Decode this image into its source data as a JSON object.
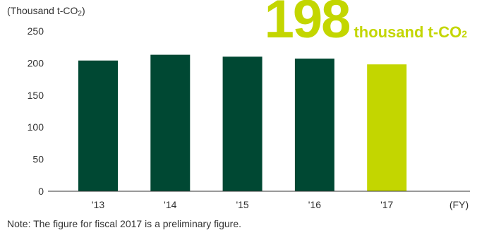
{
  "unit_label_main": "(Thousand t-CO",
  "unit_label_sub": "2",
  "unit_label_end": ")",
  "highlight": {
    "value": "198",
    "unit_main": "thousand t-CO",
    "unit_sub": "2",
    "color": "#c3d600"
  },
  "note": "Note: The figure for fiscal 2017 is a preliminary figure.",
  "colors": {
    "bar": "#004833",
    "bar_highlight": "#c3d600",
    "axis": "#333333"
  },
  "chart_data": {
    "type": "bar",
    "categories": [
      "'13",
      "'14",
      "'15",
      "'16",
      "'17"
    ],
    "values": [
      204,
      213,
      210,
      207,
      198
    ],
    "highlight_index": 4,
    "x_unit_label": "(FY)",
    "ylim": [
      0,
      250
    ],
    "yticks": [
      0,
      50,
      100,
      150,
      200,
      250
    ],
    "grid": false
  }
}
